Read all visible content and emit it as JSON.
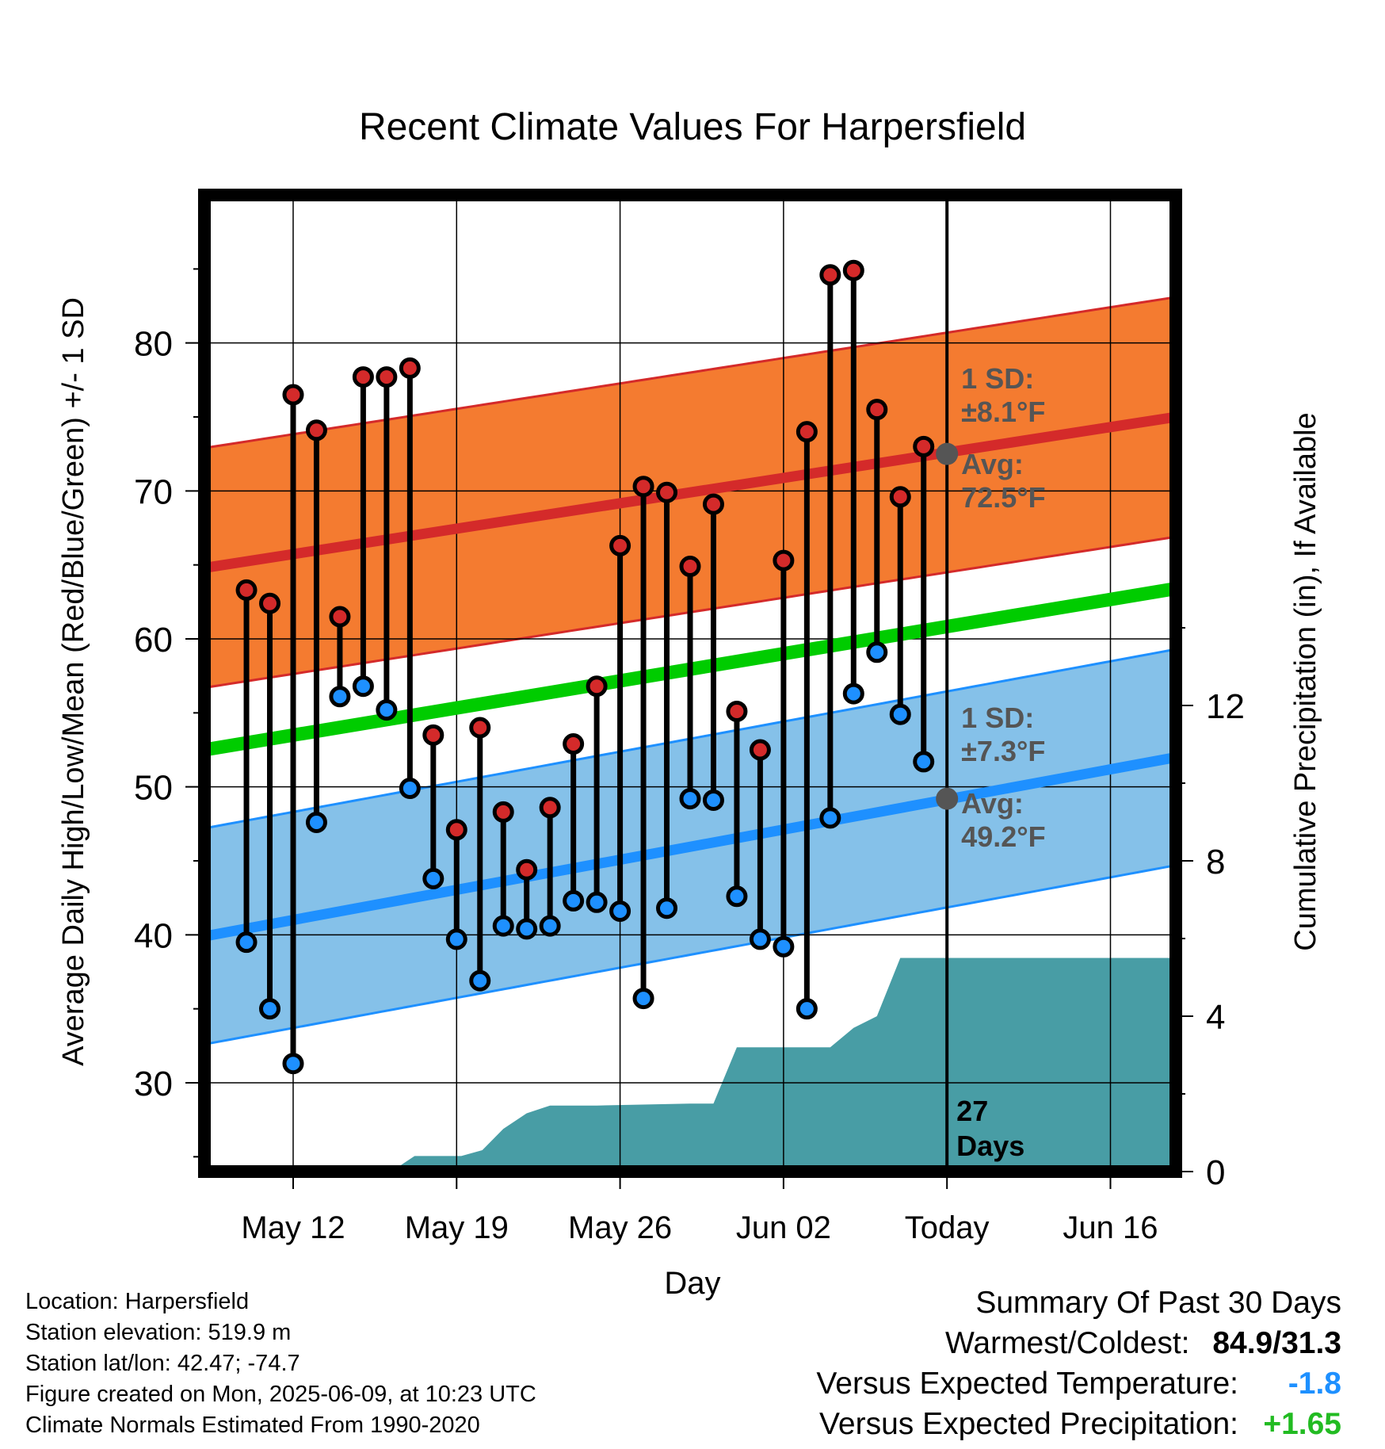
{
  "chart_data": {
    "type": "line",
    "title": "Recent Climate Values For Harpersfield",
    "xlabel": "Day",
    "ylabel": "Average Daily High/Low/Mean (Red/Blue/Green) +/- 1 SD",
    "y2label": "Cumulative Precipitation (in), If Available",
    "x_tick_labels": [
      "May 12",
      "May 19",
      "May 26",
      "Jun 02",
      "Today",
      "Jun 16"
    ],
    "x_range_days": [
      -31.8,
      9.8
    ],
    "x_ticks_days_from_today": [
      -28,
      -21,
      -14,
      -7,
      0,
      7
    ],
    "ylim": [
      24,
      90
    ],
    "y_ticks": [
      30,
      40,
      50,
      60,
      70,
      80
    ],
    "y2lim": [
      0,
      24
    ],
    "y2_ticks": [
      0,
      4,
      8,
      12
    ],
    "grid": true,
    "days_from_today": [
      -30,
      -29,
      -28,
      -27,
      -26,
      -25,
      -24,
      -23,
      -22,
      -21,
      -20,
      -19,
      -18,
      -17,
      -16,
      -15,
      -14,
      -13,
      -12,
      -11,
      -10,
      -9,
      -8,
      -7,
      -6,
      -5,
      -4,
      -3,
      -2,
      -1
    ],
    "daily_high": [
      63.3,
      62.4,
      76.5,
      74.1,
      61.5,
      77.7,
      77.7,
      78.3,
      53.5,
      47.1,
      54.0,
      48.3,
      44.4,
      48.6,
      52.9,
      56.8,
      66.3,
      70.3,
      69.9,
      64.9,
      69.1,
      55.1,
      52.5,
      65.3,
      74.0,
      84.6,
      84.9,
      75.5,
      69.6,
      73.0
    ],
    "daily_low": [
      39.5,
      35.0,
      31.3,
      47.6,
      56.1,
      56.8,
      55.2,
      49.9,
      43.8,
      39.7,
      36.9,
      40.6,
      40.4,
      40.6,
      42.3,
      42.2,
      41.6,
      35.7,
      41.8,
      49.2,
      49.1,
      42.6,
      39.7,
      39.2,
      35.0,
      47.9,
      56.3,
      59.1,
      54.9,
      51.7
    ],
    "normal_high": {
      "start": 64.8,
      "end": 75.0,
      "sd": 8.1,
      "today_avg": 72.5
    },
    "normal_low": {
      "start": 39.9,
      "end": 52.0,
      "sd": 7.3,
      "today_avg": 49.2
    },
    "normal_mean": {
      "start": 52.5,
      "end": 63.4
    },
    "cumulative_precip": [
      [
        -31.8,
        0
      ],
      [
        -23.8,
        0
      ],
      [
        -22.8,
        0.4
      ],
      [
        -20.8,
        0.4
      ],
      [
        -19.9,
        0.55
      ],
      [
        -19.0,
        1.1
      ],
      [
        -18.0,
        1.5
      ],
      [
        -17.0,
        1.7
      ],
      [
        -15.0,
        1.7
      ],
      [
        -11.0,
        1.75
      ],
      [
        -10.0,
        1.75
      ],
      [
        -9.0,
        3.2
      ],
      [
        -7.0,
        3.2
      ],
      [
        -5.0,
        3.2
      ],
      [
        -4.0,
        3.7
      ],
      [
        -3.0,
        4.0
      ],
      [
        -2.0,
        5.5
      ],
      [
        9.8,
        5.5
      ]
    ],
    "annotations": {
      "high_sd": "1 SD:",
      "high_sd_value": "±8.1°F",
      "high_avg": "Avg:",
      "high_avg_value": "72.5°F",
      "low_sd": "1 SD:",
      "low_sd_value": "±7.3°F",
      "low_avg": "Avg:",
      "low_avg_value": "49.2°F",
      "count_number": "27",
      "count_unit": "Days"
    },
    "colors": {
      "high_band": "#f47b30",
      "high_line": "#d42a2a",
      "low_band": "#85c1e9",
      "low_line": "#1e90ff",
      "mean_line": "#00cc00",
      "precip": "#489da5",
      "high_dot": "#d42a2a",
      "low_dot": "#1e90ff",
      "annotation": "#555555"
    }
  },
  "info": {
    "location": "Location: Harpersfield",
    "elevation": "Station elevation: 519.9 m",
    "latlon": "Station lat/lon: 42.47; -74.7",
    "created": "Figure created on Mon, 2025-06-09, at 10:23 UTC",
    "normals": "Climate Normals Estimated From 1990-2020"
  },
  "summary": {
    "title": "Summary Of Past 30 Days",
    "warm_cold_label": "Warmest/Coldest:",
    "warm_cold_value": "84.9/31.3",
    "temp_label": "Versus Expected Temperature:",
    "temp_value": "-1.8",
    "temp_color": "#1e90ff",
    "precip_label": "Versus Expected Precipitation:",
    "precip_value": "+1.65",
    "precip_color": "#22bb22"
  }
}
